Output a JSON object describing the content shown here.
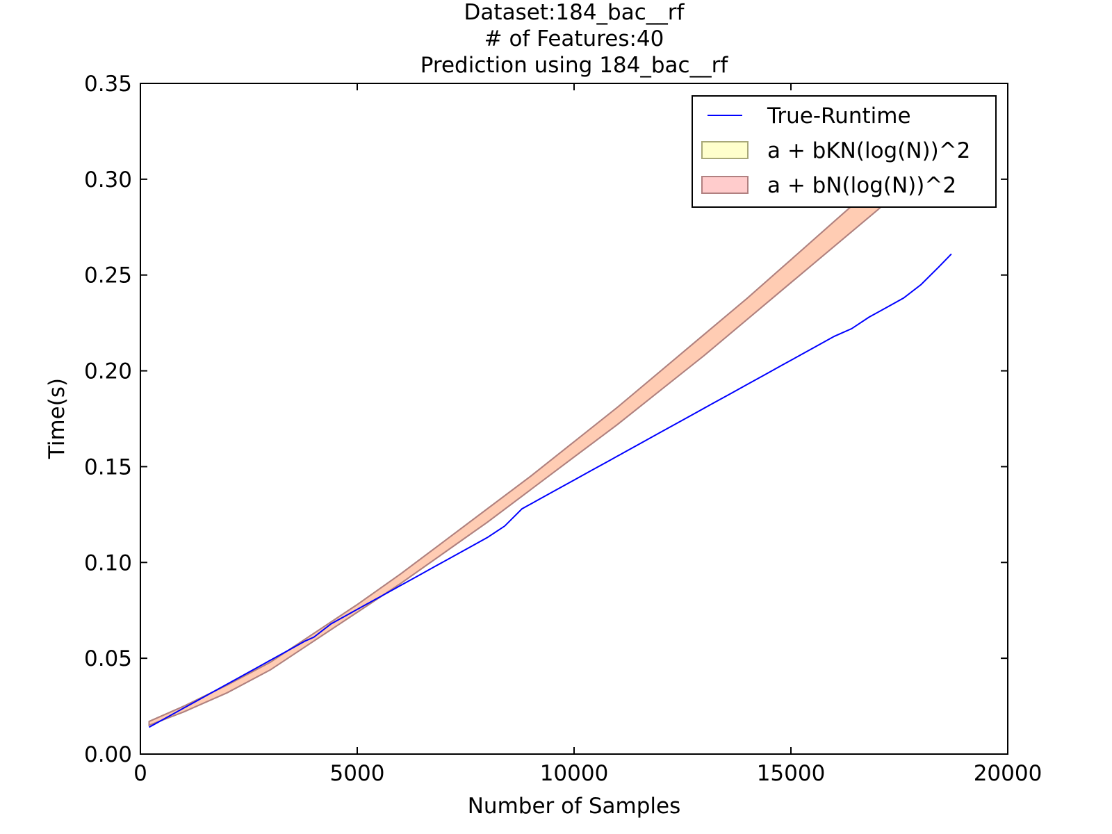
{
  "chart_data": {
    "type": "line",
    "title_lines": [
      "Dataset:184_bac__rf",
      "# of Features:40",
      "Prediction using 184_bac__rf"
    ],
    "xlabel": "Number of Samples",
    "ylabel": "Time(s)",
    "xlim": [
      0,
      20000
    ],
    "ylim": [
      0.0,
      0.35
    ],
    "grid": false,
    "x_ticks": [
      0,
      5000,
      10000,
      15000,
      20000
    ],
    "x_tick_labels": [
      "0",
      "5000",
      "10000",
      "15000",
      "20000"
    ],
    "y_ticks": [
      0.0,
      0.05,
      0.1,
      0.15,
      0.2,
      0.25,
      0.3,
      0.35
    ],
    "y_tick_labels": [
      "0.00",
      "0.05",
      "0.10",
      "0.15",
      "0.20",
      "0.25",
      "0.30",
      "0.35"
    ],
    "legend_position": "top-right",
    "series": [
      {
        "name": "True-Runtime",
        "kind": "line",
        "color": "#0000ff",
        "x": [
          200,
          600,
          1000,
          1400,
          1800,
          2200,
          2600,
          3000,
          3400,
          3800,
          4000,
          4400,
          4800,
          5200,
          5600,
          6000,
          6400,
          6800,
          7200,
          7600,
          8000,
          8400,
          8800,
          9200,
          9600,
          10000,
          10400,
          10800,
          11200,
          11600,
          12000,
          12400,
          12800,
          13200,
          13600,
          14000,
          14400,
          14800,
          15200,
          15600,
          16000,
          16400,
          16800,
          17200,
          17600,
          18000,
          18400,
          18700
        ],
        "y": [
          0.014,
          0.019,
          0.024,
          0.029,
          0.034,
          0.039,
          0.044,
          0.049,
          0.054,
          0.059,
          0.061,
          0.068,
          0.073,
          0.078,
          0.083,
          0.088,
          0.093,
          0.098,
          0.103,
          0.108,
          0.113,
          0.119,
          0.128,
          0.133,
          0.138,
          0.143,
          0.148,
          0.153,
          0.158,
          0.163,
          0.168,
          0.173,
          0.178,
          0.183,
          0.188,
          0.193,
          0.198,
          0.203,
          0.208,
          0.213,
          0.218,
          0.222,
          0.228,
          0.233,
          0.238,
          0.245,
          0.254,
          0.261
        ]
      },
      {
        "name": "a + bKN(log(N))^2",
        "kind": "band",
        "fill": "#ffff99",
        "edge": "#a8a878",
        "x": [
          200,
          1000,
          2000,
          3000,
          4000,
          5000,
          6000,
          7000,
          8000,
          9000,
          10000,
          11000,
          12000,
          13000,
          14000,
          15000,
          16000,
          17000,
          17600
        ],
        "lower": [
          0.015,
          0.022,
          0.032,
          0.044,
          0.059,
          0.074,
          0.089,
          0.105,
          0.121,
          0.138,
          0.155,
          0.172,
          0.19,
          0.208,
          0.227,
          0.246,
          0.265,
          0.284,
          0.296
        ],
        "upper": [
          0.017,
          0.025,
          0.036,
          0.048,
          0.063,
          0.078,
          0.094,
          0.111,
          0.128,
          0.145,
          0.163,
          0.181,
          0.2,
          0.219,
          0.238,
          0.258,
          0.278,
          0.298,
          0.31
        ]
      },
      {
        "name": "a + bN(log(N))^2",
        "kind": "band",
        "fill": "#ff9999",
        "edge": "#b08080",
        "x": [
          200,
          1000,
          2000,
          3000,
          4000,
          5000,
          6000,
          7000,
          8000,
          9000,
          10000,
          11000,
          12000,
          13000,
          14000,
          15000,
          16000,
          17000,
          17600
        ],
        "lower": [
          0.015,
          0.022,
          0.032,
          0.044,
          0.059,
          0.074,
          0.089,
          0.105,
          0.121,
          0.138,
          0.155,
          0.172,
          0.19,
          0.208,
          0.227,
          0.246,
          0.265,
          0.284,
          0.296
        ],
        "upper": [
          0.017,
          0.025,
          0.036,
          0.048,
          0.063,
          0.078,
          0.094,
          0.111,
          0.128,
          0.145,
          0.163,
          0.181,
          0.2,
          0.219,
          0.238,
          0.258,
          0.278,
          0.298,
          0.31
        ]
      }
    ]
  }
}
